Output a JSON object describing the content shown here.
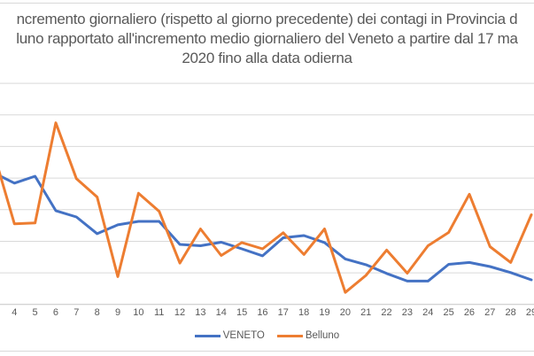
{
  "title": {
    "lines": [
      "ncremento giornaliero  (rispetto al giorno precedente) dei contagi in Provincia d",
      "luno rapportato all'incremento medio giornaliero del Veneto a partire dal 17 ma",
      "2020 fino alla data odierna"
    ],
    "color": "#595959"
  },
  "chart_data": {
    "type": "line",
    "categories": [
      "4",
      "5",
      "6",
      "7",
      "8",
      "9",
      "10",
      "11",
      "12",
      "13",
      "14",
      "15",
      "16",
      "17",
      "18",
      "19",
      "20",
      "21",
      "22",
      "23",
      "24",
      "25",
      "26",
      "27",
      "28",
      "29"
    ],
    "series": [
      {
        "name": "VENETO",
        "color": "#4472C4",
        "offscreen_entry_value": 4.17,
        "values": [
          3.84,
          4.06,
          2.97,
          2.77,
          2.24,
          2.52,
          2.63,
          2.63,
          1.9,
          1.86,
          1.97,
          1.76,
          1.54,
          2.11,
          2.18,
          1.96,
          1.44,
          1.26,
          0.98,
          0.74,
          0.74,
          1.27,
          1.33,
          1.2,
          1.01,
          0.78
        ]
      },
      {
        "name": "Belluno",
        "color": "#ED7D31",
        "offscreen_entry_value": 4.8,
        "values": [
          2.55,
          2.58,
          5.75,
          3.98,
          3.4,
          0.88,
          3.52,
          2.95,
          1.31,
          2.39,
          1.55,
          1.96,
          1.76,
          2.27,
          1.58,
          2.39,
          0.38,
          0.92,
          1.72,
          0.99,
          1.86,
          2.28,
          3.49,
          1.83,
          1.33,
          2.84
        ]
      }
    ],
    "ylim": [
      0,
      7
    ],
    "gridline_step": 1,
    "y_axis_labels_visible": false,
    "grid": true,
    "legend_position": "bottom-center",
    "gridline_color": "#D9D9D9",
    "axis_line_color": "#C6C6C6",
    "label_color": "#595959"
  }
}
